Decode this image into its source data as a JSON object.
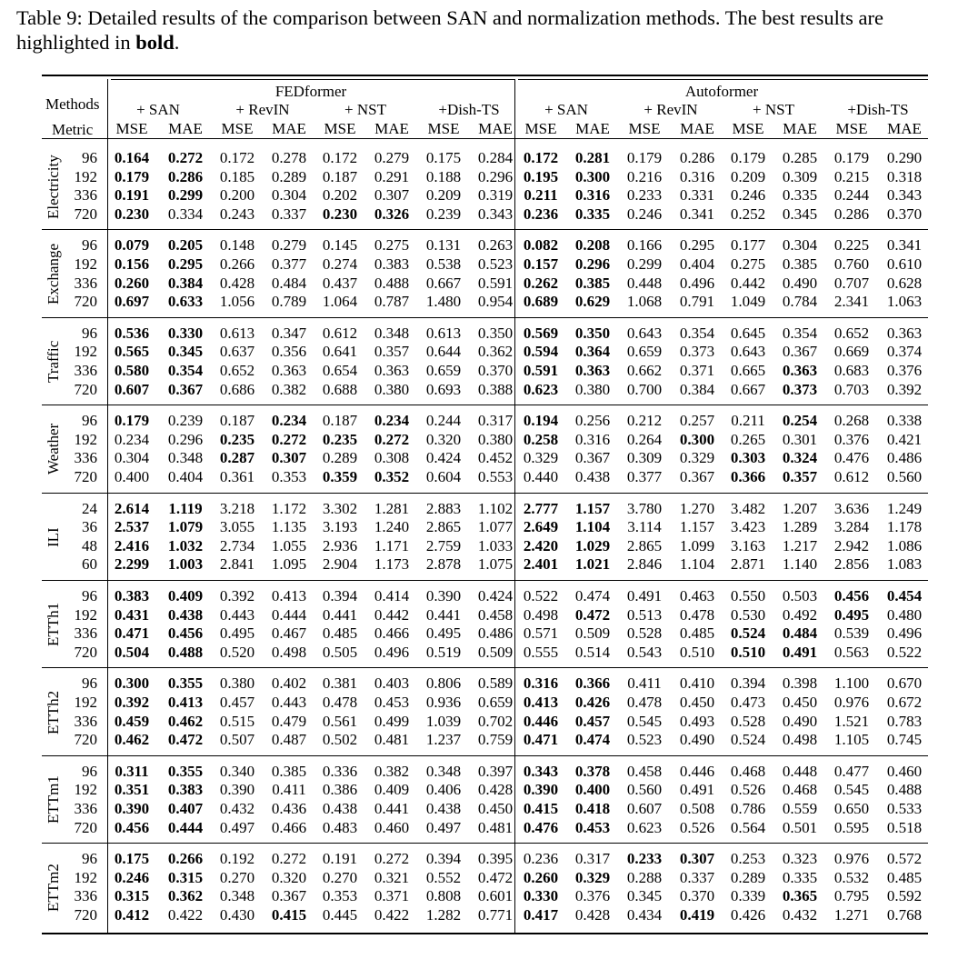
{
  "caption": {
    "label": "Table 9:",
    "text": "Detailed results of the comparison between SAN and normalization methods. The best results are highlighted in",
    "bold_word": "bold",
    "end": "."
  },
  "header": {
    "methods_label": "Methods",
    "metric_label": "Metric",
    "groups": [
      "FEDformer",
      "Autoformer"
    ],
    "submethods": [
      "+ SAN",
      "+ RevIN",
      "+ NST",
      "+Dish-TS",
      "+ SAN",
      "+ RevIN",
      "+ NST",
      "+Dish-TS"
    ],
    "metrics": [
      "MSE",
      "MAE",
      "MSE",
      "MAE",
      "MSE",
      "MAE",
      "MSE",
      "MAE",
      "MSE",
      "MAE",
      "MSE",
      "MAE",
      "MSE",
      "MAE",
      "MSE",
      "MAE"
    ]
  },
  "datasets": [
    {
      "name": "Electricity",
      "rows": [
        {
          "len": "96",
          "v": [
            "0.164",
            "0.272",
            "0.172",
            "0.278",
            "0.172",
            "0.279",
            "0.175",
            "0.284",
            "0.172",
            "0.281",
            "0.179",
            "0.286",
            "0.179",
            "0.285",
            "0.179",
            "0.290"
          ],
          "b": [
            0,
            1,
            8,
            9
          ]
        },
        {
          "len": "192",
          "v": [
            "0.179",
            "0.286",
            "0.185",
            "0.289",
            "0.187",
            "0.291",
            "0.188",
            "0.296",
            "0.195",
            "0.300",
            "0.216",
            "0.316",
            "0.209",
            "0.309",
            "0.215",
            "0.318"
          ],
          "b": [
            0,
            1,
            8,
            9
          ]
        },
        {
          "len": "336",
          "v": [
            "0.191",
            "0.299",
            "0.200",
            "0.304",
            "0.202",
            "0.307",
            "0.209",
            "0.319",
            "0.211",
            "0.316",
            "0.233",
            "0.331",
            "0.246",
            "0.335",
            "0.244",
            "0.343"
          ],
          "b": [
            0,
            1,
            8,
            9
          ]
        },
        {
          "len": "720",
          "v": [
            "0.230",
            "0.334",
            "0.243",
            "0.337",
            "0.230",
            "0.326",
            "0.239",
            "0.343",
            "0.236",
            "0.335",
            "0.246",
            "0.341",
            "0.252",
            "0.345",
            "0.286",
            "0.370"
          ],
          "b": [
            0,
            4,
            5,
            8,
            9
          ]
        }
      ]
    },
    {
      "name": "Exchange",
      "rows": [
        {
          "len": "96",
          "v": [
            "0.079",
            "0.205",
            "0.148",
            "0.279",
            "0.145",
            "0.275",
            "0.131",
            "0.263",
            "0.082",
            "0.208",
            "0.166",
            "0.295",
            "0.177",
            "0.304",
            "0.225",
            "0.341"
          ],
          "b": [
            0,
            1,
            8,
            9
          ]
        },
        {
          "len": "192",
          "v": [
            "0.156",
            "0.295",
            "0.266",
            "0.377",
            "0.274",
            "0.383",
            "0.538",
            "0.523",
            "0.157",
            "0.296",
            "0.299",
            "0.404",
            "0.275",
            "0.385",
            "0.760",
            "0.610"
          ],
          "b": [
            0,
            1,
            8,
            9
          ]
        },
        {
          "len": "336",
          "v": [
            "0.260",
            "0.384",
            "0.428",
            "0.484",
            "0.437",
            "0.488",
            "0.667",
            "0.591",
            "0.262",
            "0.385",
            "0.448",
            "0.496",
            "0.442",
            "0.490",
            "0.707",
            "0.628"
          ],
          "b": [
            0,
            1,
            8,
            9
          ]
        },
        {
          "len": "720",
          "v": [
            "0.697",
            "0.633",
            "1.056",
            "0.789",
            "1.064",
            "0.787",
            "1.480",
            "0.954",
            "0.689",
            "0.629",
            "1.068",
            "0.791",
            "1.049",
            "0.784",
            "2.341",
            "1.063"
          ],
          "b": [
            0,
            1,
            8,
            9
          ]
        }
      ]
    },
    {
      "name": "Traffic",
      "rows": [
        {
          "len": "96",
          "v": [
            "0.536",
            "0.330",
            "0.613",
            "0.347",
            "0.612",
            "0.348",
            "0.613",
            "0.350",
            "0.569",
            "0.350",
            "0.643",
            "0.354",
            "0.645",
            "0.354",
            "0.652",
            "0.363"
          ],
          "b": [
            0,
            1,
            8,
            9
          ]
        },
        {
          "len": "192",
          "v": [
            "0.565",
            "0.345",
            "0.637",
            "0.356",
            "0.641",
            "0.357",
            "0.644",
            "0.362",
            "0.594",
            "0.364",
            "0.659",
            "0.373",
            "0.643",
            "0.367",
            "0.669",
            "0.374"
          ],
          "b": [
            0,
            1,
            8,
            9
          ]
        },
        {
          "len": "336",
          "v": [
            "0.580",
            "0.354",
            "0.652",
            "0.363",
            "0.654",
            "0.363",
            "0.659",
            "0.370",
            "0.591",
            "0.363",
            "0.662",
            "0.371",
            "0.665",
            "0.363",
            "0.683",
            "0.376"
          ],
          "b": [
            0,
            1,
            8,
            9,
            13
          ]
        },
        {
          "len": "720",
          "v": [
            "0.607",
            "0.367",
            "0.686",
            "0.382",
            "0.688",
            "0.380",
            "0.693",
            "0.388",
            "0.623",
            "0.380",
            "0.700",
            "0.384",
            "0.667",
            "0.373",
            "0.703",
            "0.392"
          ],
          "b": [
            0,
            1,
            8,
            13
          ]
        }
      ]
    },
    {
      "name": "Weather",
      "rows": [
        {
          "len": "96",
          "v": [
            "0.179",
            "0.239",
            "0.187",
            "0.234",
            "0.187",
            "0.234",
            "0.244",
            "0.317",
            "0.194",
            "0.256",
            "0.212",
            "0.257",
            "0.211",
            "0.254",
            "0.268",
            "0.338"
          ],
          "b": [
            0,
            3,
            5,
            8,
            13
          ]
        },
        {
          "len": "192",
          "v": [
            "0.234",
            "0.296",
            "0.235",
            "0.272",
            "0.235",
            "0.272",
            "0.320",
            "0.380",
            "0.258",
            "0.316",
            "0.264",
            "0.300",
            "0.265",
            "0.301",
            "0.376",
            "0.421"
          ],
          "b": [
            2,
            3,
            4,
            5,
            8,
            11
          ]
        },
        {
          "len": "336",
          "v": [
            "0.304",
            "0.348",
            "0.287",
            "0.307",
            "0.289",
            "0.308",
            "0.424",
            "0.452",
            "0.329",
            "0.367",
            "0.309",
            "0.329",
            "0.303",
            "0.324",
            "0.476",
            "0.486"
          ],
          "b": [
            2,
            3,
            12,
            13
          ]
        },
        {
          "len": "720",
          "v": [
            "0.400",
            "0.404",
            "0.361",
            "0.353",
            "0.359",
            "0.352",
            "0.604",
            "0.553",
            "0.440",
            "0.438",
            "0.377",
            "0.367",
            "0.366",
            "0.357",
            "0.612",
            "0.560"
          ],
          "b": [
            4,
            5,
            12,
            13
          ]
        }
      ]
    },
    {
      "name": "ILI",
      "rows": [
        {
          "len": "24",
          "v": [
            "2.614",
            "1.119",
            "3.218",
            "1.172",
            "3.302",
            "1.281",
            "2.883",
            "1.102",
            "2.777",
            "1.157",
            "3.780",
            "1.270",
            "3.482",
            "1.207",
            "3.636",
            "1.249"
          ],
          "b": [
            0,
            1,
            8,
            9
          ]
        },
        {
          "len": "36",
          "v": [
            "2.537",
            "1.079",
            "3.055",
            "1.135",
            "3.193",
            "1.240",
            "2.865",
            "1.077",
            "2.649",
            "1.104",
            "3.114",
            "1.157",
            "3.423",
            "1.289",
            "3.284",
            "1.178"
          ],
          "b": [
            0,
            1,
            8,
            9
          ]
        },
        {
          "len": "48",
          "v": [
            "2.416",
            "1.032",
            "2.734",
            "1.055",
            "2.936",
            "1.171",
            "2.759",
            "1.033",
            "2.420",
            "1.029",
            "2.865",
            "1.099",
            "3.163",
            "1.217",
            "2.942",
            "1.086"
          ],
          "b": [
            0,
            1,
            8,
            9
          ]
        },
        {
          "len": "60",
          "v": [
            "2.299",
            "1.003",
            "2.841",
            "1.095",
            "2.904",
            "1.173",
            "2.878",
            "1.075",
            "2.401",
            "1.021",
            "2.846",
            "1.104",
            "2.871",
            "1.140",
            "2.856",
            "1.083"
          ],
          "b": [
            0,
            1,
            8,
            9
          ]
        }
      ]
    },
    {
      "name": "ETTh1",
      "rows": [
        {
          "len": "96",
          "v": [
            "0.383",
            "0.409",
            "0.392",
            "0.413",
            "0.394",
            "0.414",
            "0.390",
            "0.424",
            "0.522",
            "0.474",
            "0.491",
            "0.463",
            "0.550",
            "0.503",
            "0.456",
            "0.454"
          ],
          "b": [
            0,
            1,
            14,
            15
          ]
        },
        {
          "len": "192",
          "v": [
            "0.431",
            "0.438",
            "0.443",
            "0.444",
            "0.441",
            "0.442",
            "0.441",
            "0.458",
            "0.498",
            "0.472",
            "0.513",
            "0.478",
            "0.530",
            "0.492",
            "0.495",
            "0.480"
          ],
          "b": [
            0,
            1,
            9,
            14
          ]
        },
        {
          "len": "336",
          "v": [
            "0.471",
            "0.456",
            "0.495",
            "0.467",
            "0.485",
            "0.466",
            "0.495",
            "0.486",
            "0.571",
            "0.509",
            "0.528",
            "0.485",
            "0.524",
            "0.484",
            "0.539",
            "0.496"
          ],
          "b": [
            0,
            1,
            12,
            13
          ]
        },
        {
          "len": "720",
          "v": [
            "0.504",
            "0.488",
            "0.520",
            "0.498",
            "0.505",
            "0.496",
            "0.519",
            "0.509",
            "0.555",
            "0.514",
            "0.543",
            "0.510",
            "0.510",
            "0.491",
            "0.563",
            "0.522"
          ],
          "b": [
            0,
            1,
            12,
            13
          ]
        }
      ]
    },
    {
      "name": "ETTh2",
      "rows": [
        {
          "len": "96",
          "v": [
            "0.300",
            "0.355",
            "0.380",
            "0.402",
            "0.381",
            "0.403",
            "0.806",
            "0.589",
            "0.316",
            "0.366",
            "0.411",
            "0.410",
            "0.394",
            "0.398",
            "1.100",
            "0.670"
          ],
          "b": [
            0,
            1,
            8,
            9
          ]
        },
        {
          "len": "192",
          "v": [
            "0.392",
            "0.413",
            "0.457",
            "0.443",
            "0.478",
            "0.453",
            "0.936",
            "0.659",
            "0.413",
            "0.426",
            "0.478",
            "0.450",
            "0.473",
            "0.450",
            "0.976",
            "0.672"
          ],
          "b": [
            0,
            1,
            8,
            9
          ]
        },
        {
          "len": "336",
          "v": [
            "0.459",
            "0.462",
            "0.515",
            "0.479",
            "0.561",
            "0.499",
            "1.039",
            "0.702",
            "0.446",
            "0.457",
            "0.545",
            "0.493",
            "0.528",
            "0.490",
            "1.521",
            "0.783"
          ],
          "b": [
            0,
            1,
            8,
            9
          ]
        },
        {
          "len": "720",
          "v": [
            "0.462",
            "0.472",
            "0.507",
            "0.487",
            "0.502",
            "0.481",
            "1.237",
            "0.759",
            "0.471",
            "0.474",
            "0.523",
            "0.490",
            "0.524",
            "0.498",
            "1.105",
            "0.745"
          ],
          "b": [
            0,
            1,
            8,
            9
          ]
        }
      ]
    },
    {
      "name": "ETTm1",
      "rows": [
        {
          "len": "96",
          "v": [
            "0.311",
            "0.355",
            "0.340",
            "0.385",
            "0.336",
            "0.382",
            "0.348",
            "0.397",
            "0.343",
            "0.378",
            "0.458",
            "0.446",
            "0.468",
            "0.448",
            "0.477",
            "0.460"
          ],
          "b": [
            0,
            1,
            8,
            9
          ]
        },
        {
          "len": "192",
          "v": [
            "0.351",
            "0.383",
            "0.390",
            "0.411",
            "0.386",
            "0.409",
            "0.406",
            "0.428",
            "0.390",
            "0.400",
            "0.560",
            "0.491",
            "0.526",
            "0.468",
            "0.545",
            "0.488"
          ],
          "b": [
            0,
            1,
            8,
            9
          ]
        },
        {
          "len": "336",
          "v": [
            "0.390",
            "0.407",
            "0.432",
            "0.436",
            "0.438",
            "0.441",
            "0.438",
            "0.450",
            "0.415",
            "0.418",
            "0.607",
            "0.508",
            "0.786",
            "0.559",
            "0.650",
            "0.533"
          ],
          "b": [
            0,
            1,
            8,
            9
          ]
        },
        {
          "len": "720",
          "v": [
            "0.456",
            "0.444",
            "0.497",
            "0.466",
            "0.483",
            "0.460",
            "0.497",
            "0.481",
            "0.476",
            "0.453",
            "0.623",
            "0.526",
            "0.564",
            "0.501",
            "0.595",
            "0.518"
          ],
          "b": [
            0,
            1,
            8,
            9
          ]
        }
      ]
    },
    {
      "name": "ETTm2",
      "rows": [
        {
          "len": "96",
          "v": [
            "0.175",
            "0.266",
            "0.192",
            "0.272",
            "0.191",
            "0.272",
            "0.394",
            "0.395",
            "0.236",
            "0.317",
            "0.233",
            "0.307",
            "0.253",
            "0.323",
            "0.976",
            "0.572"
          ],
          "b": [
            0,
            1,
            10,
            11
          ]
        },
        {
          "len": "192",
          "v": [
            "0.246",
            "0.315",
            "0.270",
            "0.320",
            "0.270",
            "0.321",
            "0.552",
            "0.472",
            "0.260",
            "0.329",
            "0.288",
            "0.337",
            "0.289",
            "0.335",
            "0.532",
            "0.485"
          ],
          "b": [
            0,
            1,
            8,
            9
          ]
        },
        {
          "len": "336",
          "v": [
            "0.315",
            "0.362",
            "0.348",
            "0.367",
            "0.353",
            "0.371",
            "0.808",
            "0.601",
            "0.330",
            "0.376",
            "0.345",
            "0.370",
            "0.339",
            "0.365",
            "0.795",
            "0.592"
          ],
          "b": [
            0,
            1,
            8,
            13
          ]
        },
        {
          "len": "720",
          "v": [
            "0.412",
            "0.422",
            "0.430",
            "0.415",
            "0.445",
            "0.422",
            "1.282",
            "0.771",
            "0.417",
            "0.428",
            "0.434",
            "0.419",
            "0.426",
            "0.432",
            "1.271",
            "0.768"
          ],
          "b": [
            0,
            3,
            8,
            11
          ]
        }
      ]
    }
  ]
}
